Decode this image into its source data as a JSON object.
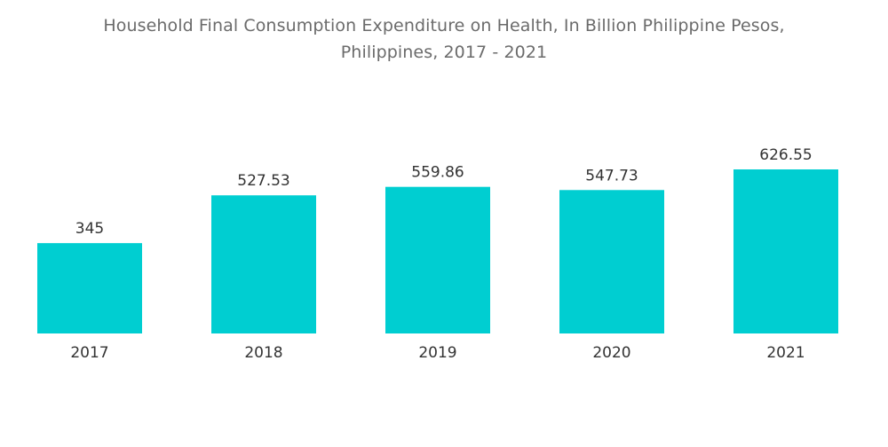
{
  "chart_data": {
    "type": "bar",
    "title": "Household Final Consumption Expenditure on Health, In Billion Philippine Pesos,",
    "subtitle": "Philippines, 2017 - 2021",
    "categories": [
      "2017",
      "2018",
      "2019",
      "2020",
      "2021"
    ],
    "series": [
      {
        "values": [
          345,
          527.53,
          559.86,
          547.73,
          626.55
        ],
        "value_labels": [
          "345",
          "527.53",
          "559.86",
          "547.73",
          "626.55"
        ]
      }
    ],
    "ylim": [
      0,
      626.55
    ],
    "grid": false,
    "legend": "none",
    "colors": {
      "bar": "#00ced1",
      "title": "#6b6b6b",
      "label": "#333333"
    }
  }
}
